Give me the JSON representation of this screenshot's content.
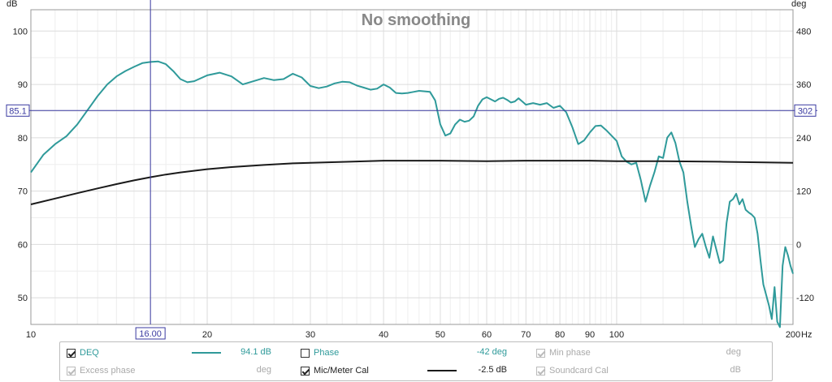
{
  "chart_data": {
    "type": "line",
    "title": "No smoothing",
    "x_scale": "log",
    "xlim": [
      10,
      200
    ],
    "x_ticks": [
      10,
      20,
      30,
      40,
      50,
      60,
      70,
      80,
      90,
      100,
      200
    ],
    "x_unit": "Hz",
    "left_axis": {
      "unit": "dB",
      "ylim": [
        45,
        104
      ],
      "ticks": [
        50,
        60,
        70,
        80,
        90,
        100
      ]
    },
    "right_axis": {
      "unit": "deg",
      "ticks": [
        -120,
        0,
        120,
        240,
        360,
        480
      ]
    },
    "grid": true,
    "cursor": {
      "x_label": "16.00",
      "y_left_label": "85.1",
      "y_right_label": "302"
    },
    "series": [
      {
        "name": "DEQ",
        "color": "#2f9a9a",
        "x": [
          10,
          10.5,
          11,
          11.5,
          12,
          12.5,
          13,
          13.5,
          14,
          14.5,
          15,
          15.5,
          16,
          16.5,
          17,
          17.5,
          18,
          18.5,
          19,
          20,
          21,
          22,
          23,
          24,
          25,
          26,
          27,
          28,
          29,
          30,
          31,
          32,
          33,
          34,
          35,
          36,
          37,
          38,
          39,
          40,
          41,
          42,
          43,
          44,
          45,
          46,
          47,
          48,
          49,
          50,
          51,
          52,
          53,
          54,
          55,
          56,
          57,
          58,
          59,
          60,
          61,
          62,
          63,
          64,
          65,
          66,
          67,
          68,
          69,
          70,
          72,
          74,
          76,
          78,
          80,
          82,
          84,
          86,
          88,
          90,
          92,
          94,
          96,
          98,
          100,
          102,
          104,
          106,
          108,
          110,
          112,
          114,
          116,
          118,
          120,
          122,
          124,
          126,
          128,
          130,
          132,
          134,
          136,
          138,
          140,
          142,
          144,
          146,
          148,
          150,
          152,
          154,
          156,
          158,
          160,
          162,
          164,
          166,
          168,
          170,
          172,
          174,
          176,
          178,
          180,
          182,
          184,
          186,
          188,
          190,
          192,
          194,
          196,
          198,
          200
        ],
        "y": [
          73.5,
          76.8,
          78.8,
          80.3,
          82.5,
          85.2,
          87.8,
          90.0,
          91.5,
          92.5,
          93.3,
          94.0,
          94.2,
          94.3,
          93.8,
          92.5,
          91.0,
          90.4,
          90.6,
          91.7,
          92.2,
          91.5,
          90.0,
          90.6,
          91.2,
          90.8,
          91.0,
          92.0,
          91.3,
          89.7,
          89.3,
          89.6,
          90.2,
          90.5,
          90.4,
          89.8,
          89.4,
          89.0,
          89.2,
          90.0,
          89.4,
          88.4,
          88.3,
          88.4,
          88.6,
          88.8,
          88.7,
          88.6,
          87.0,
          82.5,
          80.4,
          80.8,
          82.5,
          83.4,
          83.0,
          83.2,
          84.0,
          86.0,
          87.2,
          87.6,
          87.2,
          86.8,
          87.3,
          87.5,
          87.1,
          86.6,
          86.8,
          87.4,
          86.8,
          86.2,
          86.5,
          86.2,
          86.5,
          85.6,
          86.0,
          84.8,
          82.0,
          78.8,
          79.5,
          81.0,
          82.2,
          82.3,
          81.4,
          80.4,
          79.4,
          76.5,
          75.5,
          75.0,
          75.3,
          72.0,
          68.0,
          71.0,
          73.5,
          76.5,
          76.2,
          80.0,
          81.0,
          79.0,
          75.5,
          73.5,
          68.0,
          63.5,
          59.5,
          61.0,
          62.0,
          59.5,
          57.5,
          61.5,
          59.0,
          56.5,
          57.0,
          64.0,
          68.0,
          68.5,
          69.5,
          67.5,
          68.5,
          66.5,
          66.0,
          65.6,
          65.0,
          62.0,
          57.0,
          52.5,
          50.5,
          48.5,
          46.0,
          52.0,
          45.5,
          44.5,
          56.0,
          59.5,
          58.0,
          56.0,
          54.5
        ]
      },
      {
        "name": "Mic/Meter Cal",
        "color": "#1a1a1a",
        "x": [
          10,
          11,
          12,
          13,
          14,
          15,
          16,
          17,
          18,
          20,
          22,
          25,
          28,
          30,
          35,
          40,
          50,
          60,
          70,
          80,
          90,
          100,
          120,
          150,
          200
        ],
        "y": [
          67.5,
          68.6,
          69.6,
          70.5,
          71.3,
          72.0,
          72.6,
          73.1,
          73.5,
          74.1,
          74.5,
          74.9,
          75.2,
          75.3,
          75.5,
          75.7,
          75.7,
          75.6,
          75.7,
          75.7,
          75.7,
          75.6,
          75.6,
          75.5,
          75.3
        ]
      }
    ]
  },
  "y_unit_left": "dB",
  "y_unit_right": "deg",
  "legend": {
    "deq": {
      "name": "DEQ",
      "value": "94.1 dB",
      "checked": true
    },
    "phase": {
      "name": "Phase",
      "value": "-42 deg",
      "checked": false
    },
    "min_phase": {
      "name": "Min phase",
      "value": "deg",
      "checked": true
    },
    "excess_phase": {
      "name": "Excess phase",
      "value": "deg",
      "checked": true
    },
    "mic_cal": {
      "name": "Mic/Meter Cal",
      "value": "-2.5 dB",
      "checked": true
    },
    "soundcard_cal": {
      "name": "Soundcard Cal",
      "value": "dB",
      "checked": true
    }
  },
  "colors": {
    "deq": "#2f9a9a",
    "phase": "#2f9a9a",
    "mic_cal": "#1a1a1a",
    "disabled_text": "#aaaaaa",
    "grid": "#dcdcdc",
    "cursor": "#3a3aa0"
  }
}
